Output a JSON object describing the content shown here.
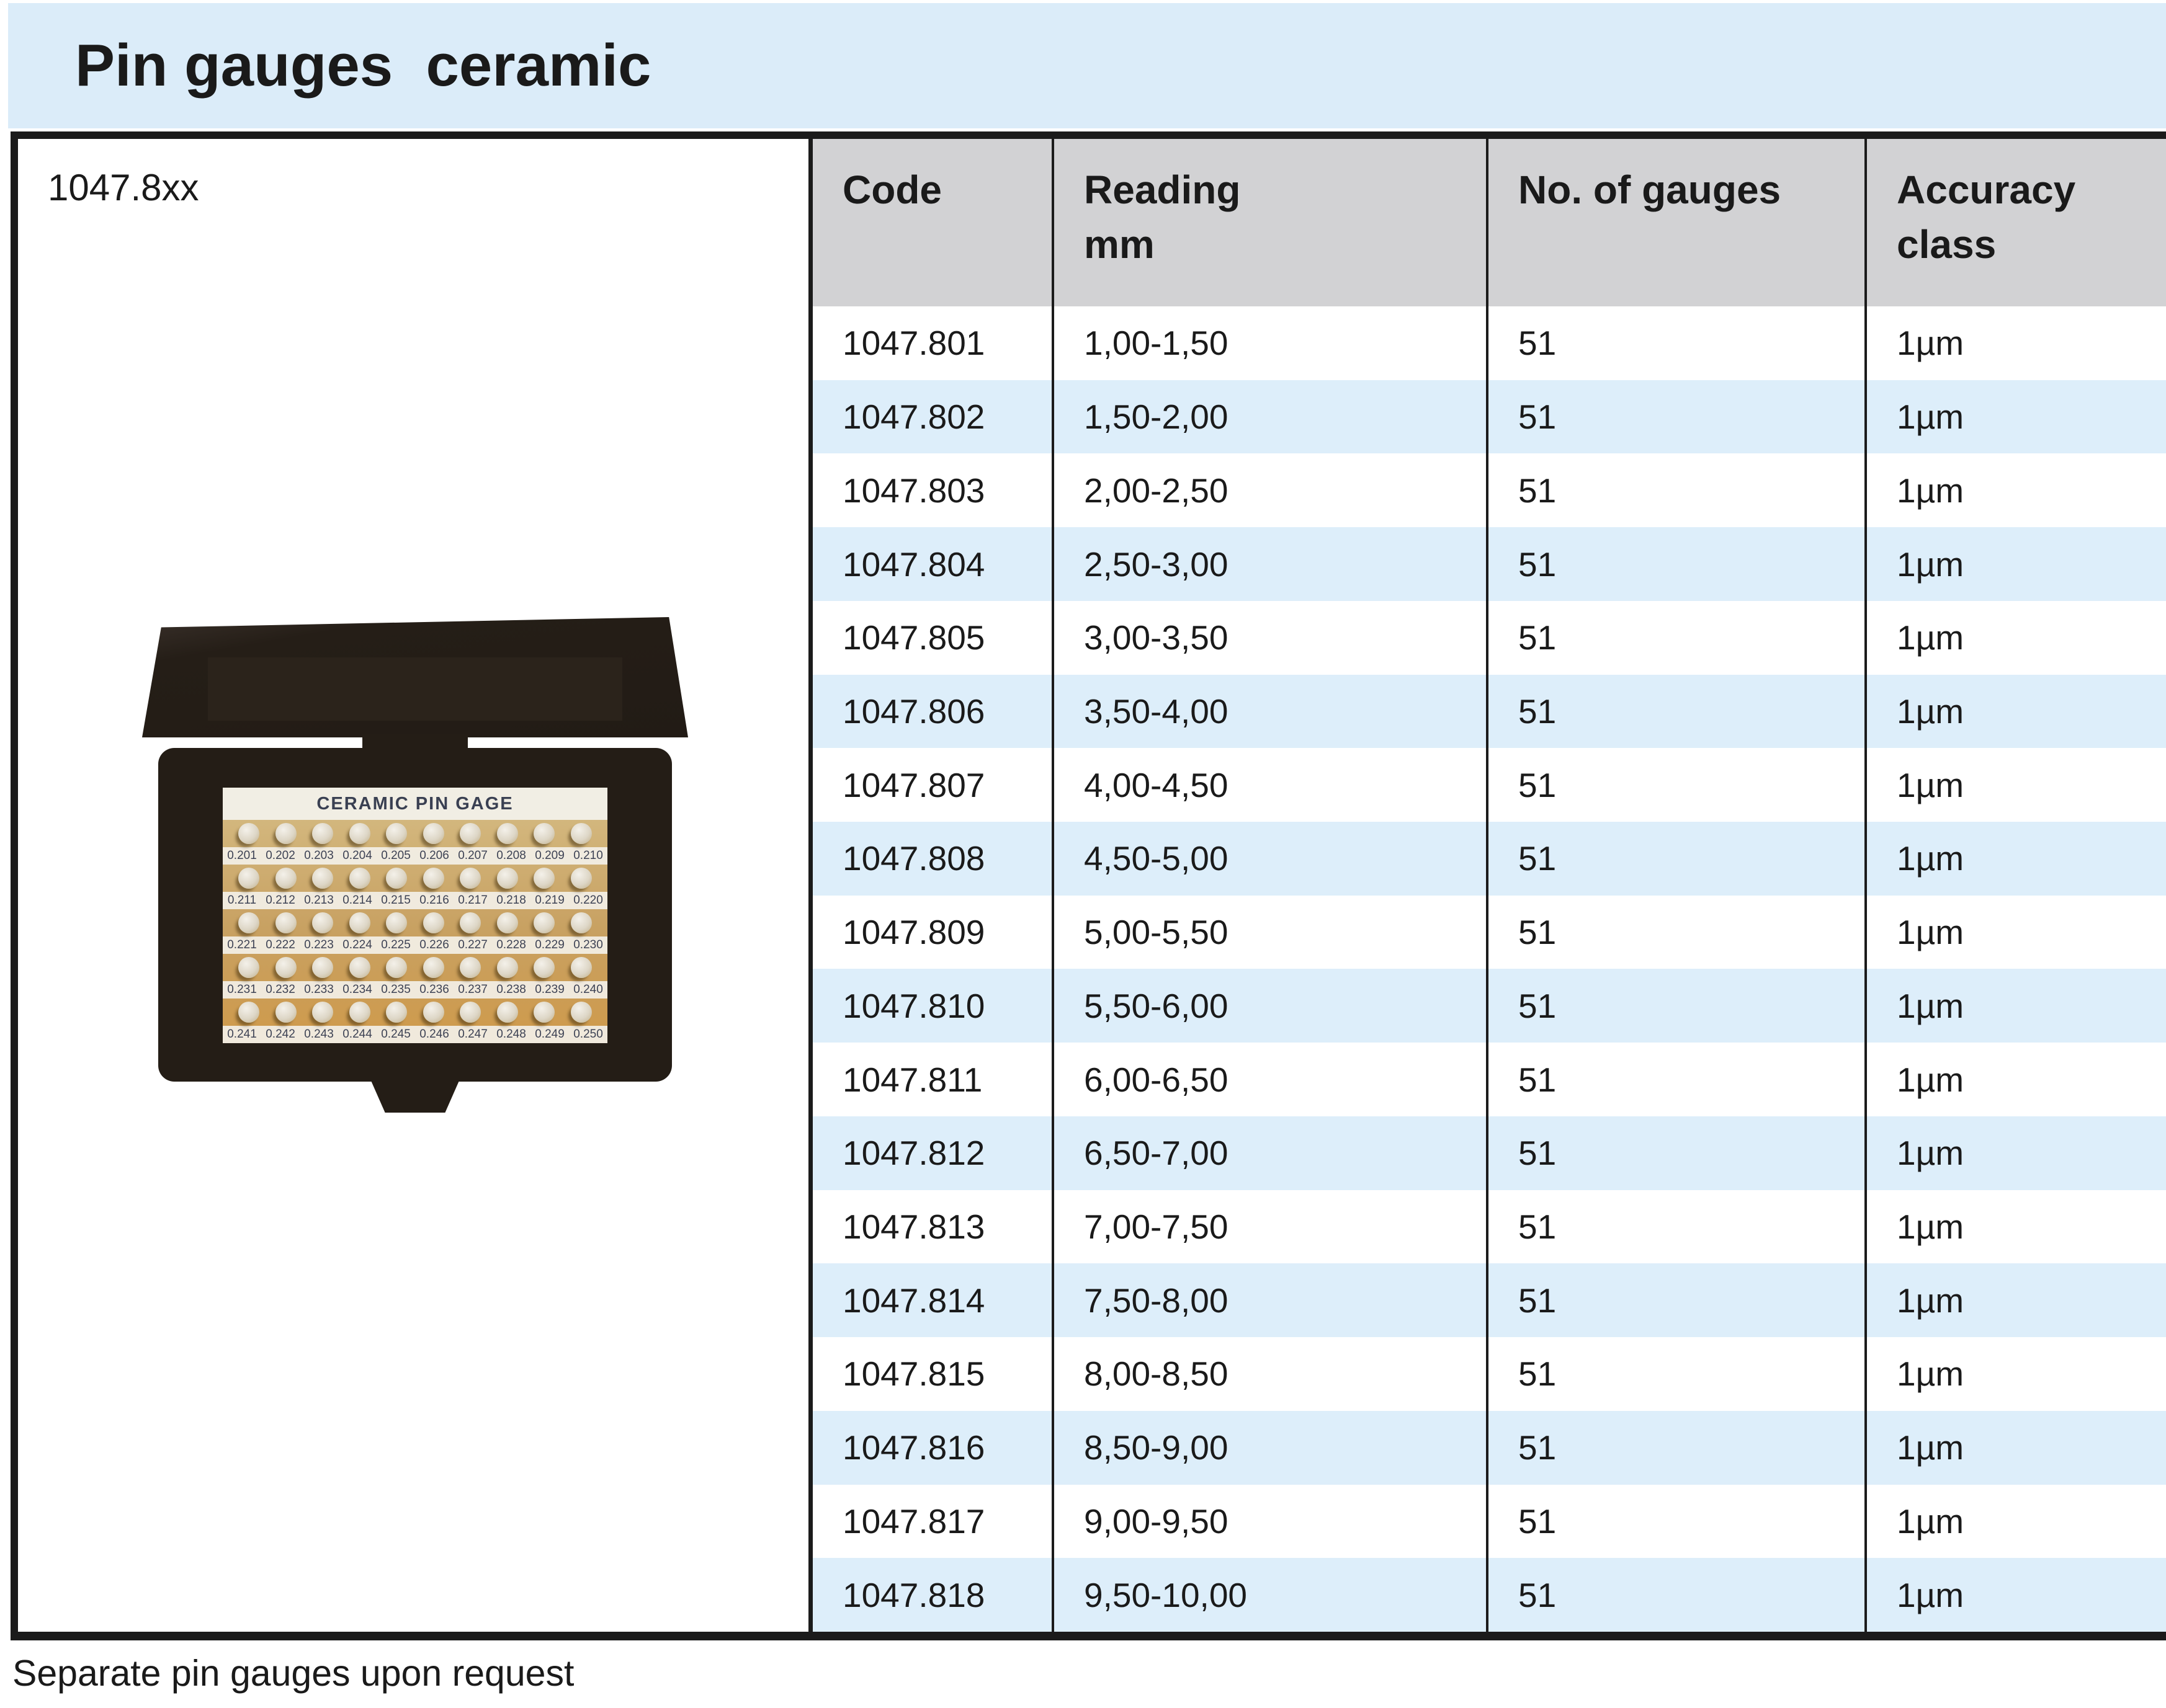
{
  "title": "Pin gauges  ceramic",
  "model_code": "1047.8xx",
  "footnote": "Separate pin gauges upon request",
  "colors": {
    "band_blue": "#dbecf9",
    "row_blue": "#ddeefa",
    "header_gray": "#d2d2d4",
    "border_black": "#1b1b1b",
    "case_dark": "#241d16",
    "tray_tan": "#c8a162"
  },
  "photo": {
    "label": "CERAMIC PIN GAGE",
    "pin_rows": [
      [
        "0.201",
        "0.202",
        "0.203",
        "0.204",
        "0.205",
        "0.206",
        "0.207",
        "0.208",
        "0.209",
        "0.210"
      ],
      [
        "0.211",
        "0.212",
        "0.213",
        "0.214",
        "0.215",
        "0.216",
        "0.217",
        "0.218",
        "0.219",
        "0.220"
      ],
      [
        "0.221",
        "0.222",
        "0.223",
        "0.224",
        "0.225",
        "0.226",
        "0.227",
        "0.228",
        "0.229",
        "0.230"
      ],
      [
        "0.231",
        "0.232",
        "0.233",
        "0.234",
        "0.235",
        "0.236",
        "0.237",
        "0.238",
        "0.239",
        "0.240"
      ],
      [
        "0.241",
        "0.242",
        "0.243",
        "0.244",
        "0.245",
        "0.246",
        "0.247",
        "0.248",
        "0.249",
        "0.250"
      ]
    ]
  },
  "table": {
    "headers": [
      {
        "line1": "Code",
        "line2": ""
      },
      {
        "line1": "Reading",
        "line2": "mm"
      },
      {
        "line1": "No. of gauges",
        "line2": ""
      },
      {
        "line1": "Accuracy",
        "line2": "class"
      }
    ],
    "rows": [
      {
        "code": "1047.801",
        "reading": "1,00-1,50",
        "gauges": "51",
        "accuracy": "1µm"
      },
      {
        "code": "1047.802",
        "reading": "1,50-2,00",
        "gauges": "51",
        "accuracy": "1µm"
      },
      {
        "code": "1047.803",
        "reading": "2,00-2,50",
        "gauges": "51",
        "accuracy": "1µm"
      },
      {
        "code": "1047.804",
        "reading": "2,50-3,00",
        "gauges": "51",
        "accuracy": "1µm"
      },
      {
        "code": "1047.805",
        "reading": "3,00-3,50",
        "gauges": "51",
        "accuracy": "1µm"
      },
      {
        "code": "1047.806",
        "reading": "3,50-4,00",
        "gauges": "51",
        "accuracy": "1µm"
      },
      {
        "code": "1047.807",
        "reading": "4,00-4,50",
        "gauges": "51",
        "accuracy": "1µm"
      },
      {
        "code": "1047.808",
        "reading": "4,50-5,00",
        "gauges": "51",
        "accuracy": "1µm"
      },
      {
        "code": "1047.809",
        "reading": "5,00-5,50",
        "gauges": "51",
        "accuracy": "1µm"
      },
      {
        "code": "1047.810",
        "reading": "5,50-6,00",
        "gauges": "51",
        "accuracy": "1µm"
      },
      {
        "code": "1047.811",
        "reading": "6,00-6,50",
        "gauges": "51",
        "accuracy": "1µm"
      },
      {
        "code": "1047.812",
        "reading": "6,50-7,00",
        "gauges": "51",
        "accuracy": "1µm"
      },
      {
        "code": "1047.813",
        "reading": "7,00-7,50",
        "gauges": "51",
        "accuracy": "1µm"
      },
      {
        "code": "1047.814",
        "reading": "7,50-8,00",
        "gauges": "51",
        "accuracy": "1µm"
      },
      {
        "code": "1047.815",
        "reading": "8,00-8,50",
        "gauges": "51",
        "accuracy": "1µm"
      },
      {
        "code": "1047.816",
        "reading": "8,50-9,00",
        "gauges": "51",
        "accuracy": "1µm"
      },
      {
        "code": "1047.817",
        "reading": "9,00-9,50",
        "gauges": "51",
        "accuracy": "1µm"
      },
      {
        "code": "1047.818",
        "reading": "9,50-10,00",
        "gauges": "51",
        "accuracy": "1µm"
      }
    ]
  }
}
